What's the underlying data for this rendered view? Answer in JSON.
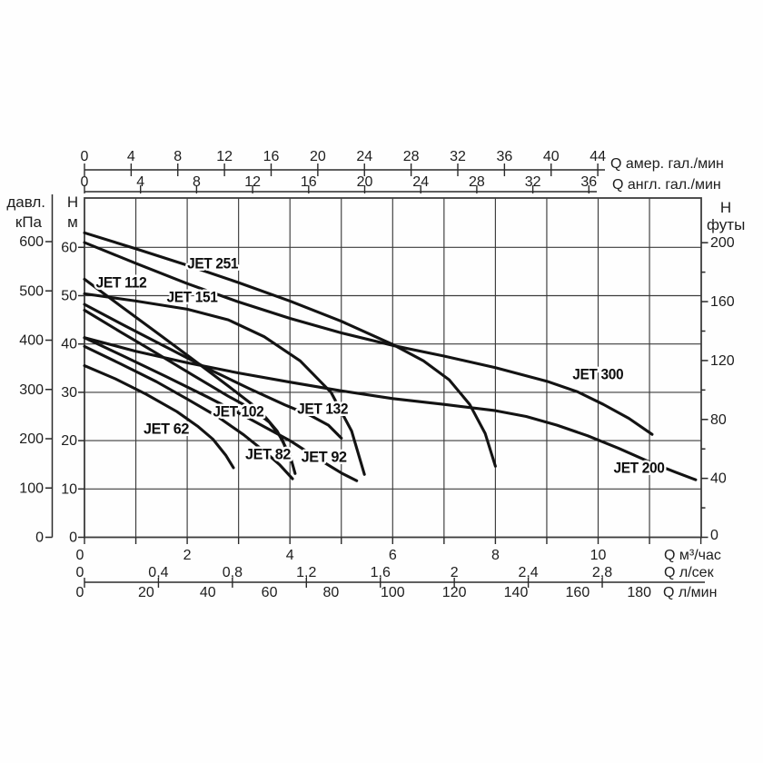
{
  "figure": {
    "background": "#ffffff",
    "description": "Напорные характеристики насосов серии JET: напор H (м, футы, кПа) в зависимости от подачи Q (м³/час, л/сек, л/мин, гал./мин)"
  },
  "colors": {
    "curve": "#131313",
    "grid": "#3c3c3c",
    "axis": "#2a2a2a",
    "text": "#1d1d1d",
    "halo": "#ffffff"
  },
  "chart_data": {
    "type": "line",
    "description": "Напорные характеристики насосов серии JET: напор H (м, футы, кПа) в зависимости от подачи Q (м³/час, л/сек, л/мин, амер./англ. гал./мин)",
    "x_unit": "м³/час",
    "y_unit": "м",
    "x_plot_range": [
      0,
      12
    ],
    "y_plot_range": [
      0,
      70.2
    ],
    "grid": {
      "x_step": 1,
      "y_step": 10
    },
    "series": [
      {
        "name": "JET 62",
        "label_at": [
          1.15,
          21.4
        ],
        "points": [
          [
            0,
            35.5
          ],
          [
            0.6,
            32.8
          ],
          [
            1.2,
            29.6
          ],
          [
            1.8,
            26.0
          ],
          [
            2.2,
            23.0
          ],
          [
            2.5,
            20.3
          ],
          [
            2.75,
            17.0
          ],
          [
            2.9,
            14.4
          ]
        ]
      },
      {
        "name": "JET 82",
        "label_at": [
          3.13,
          16.2
        ],
        "points": [
          [
            0,
            39.5
          ],
          [
            0.7,
            35.9
          ],
          [
            1.4,
            32.2
          ],
          [
            2.0,
            28.6
          ],
          [
            2.6,
            24.9
          ],
          [
            3.1,
            21.2
          ],
          [
            3.5,
            17.8
          ],
          [
            3.8,
            15.0
          ],
          [
            4.05,
            12.1
          ]
        ]
      },
      {
        "name": "JET 92",
        "label_at": [
          4.22,
          15.6
        ],
        "points": [
          [
            0,
            41.3
          ],
          [
            0.8,
            37.3
          ],
          [
            1.6,
            33.2
          ],
          [
            2.4,
            29.0
          ],
          [
            3.2,
            24.6
          ],
          [
            4.0,
            20.0
          ],
          [
            4.6,
            15.9
          ],
          [
            5.0,
            13.3
          ],
          [
            5.3,
            11.7
          ]
        ]
      },
      {
        "name": "JET 102",
        "label_at": [
          2.5,
          25.0
        ],
        "points": [
          [
            0,
            47.0
          ],
          [
            0.7,
            42.5
          ],
          [
            1.4,
            38.1
          ],
          [
            2.1,
            33.6
          ],
          [
            2.8,
            29.2
          ],
          [
            3.3,
            26.3
          ],
          [
            3.6,
            23.8
          ],
          [
            3.85,
            20.3
          ],
          [
            3.95,
            17.4
          ]
        ]
      },
      {
        "name": "JET 112",
        "label_at": [
          0.22,
          51.7
        ],
        "points": [
          [
            0,
            53.4
          ],
          [
            0.7,
            47.9
          ],
          [
            1.4,
            42.4
          ],
          [
            2.1,
            36.9
          ],
          [
            2.8,
            31.3
          ],
          [
            3.4,
            26.4
          ],
          [
            3.75,
            22.0
          ],
          [
            4.0,
            17.0
          ],
          [
            4.1,
            13.2
          ]
        ]
      },
      {
        "name": "JET 132",
        "label_at": [
          4.14,
          25.6
        ],
        "points": [
          [
            0,
            48.2
          ],
          [
            0.8,
            43.7
          ],
          [
            1.6,
            39.3
          ],
          [
            2.4,
            34.9
          ],
          [
            3.2,
            30.8
          ],
          [
            3.9,
            27.4
          ],
          [
            4.4,
            25.2
          ],
          [
            4.75,
            23.2
          ],
          [
            5.0,
            20.5
          ]
        ]
      },
      {
        "name": "JET 151",
        "label_at": [
          1.6,
          48.7
        ],
        "points": [
          [
            0,
            50.4
          ],
          [
            1.0,
            48.9
          ],
          [
            2.0,
            47.2
          ],
          [
            2.8,
            45.0
          ],
          [
            3.5,
            41.5
          ],
          [
            4.2,
            36.5
          ],
          [
            4.8,
            30.0
          ],
          [
            5.2,
            22.0
          ],
          [
            5.45,
            13.0
          ]
        ]
      },
      {
        "name": "JET 251",
        "label_at": [
          2.0,
          55.6
        ],
        "points": [
          [
            0,
            63.0
          ],
          [
            1.0,
            59.7
          ],
          [
            2.0,
            56.3
          ],
          [
            3.0,
            52.7
          ],
          [
            4.0,
            48.9
          ],
          [
            5.0,
            44.7
          ],
          [
            6.0,
            39.9
          ],
          [
            6.6,
            36.5
          ],
          [
            7.1,
            32.6
          ],
          [
            7.5,
            27.5
          ],
          [
            7.8,
            21.5
          ],
          [
            8.0,
            14.7
          ]
        ]
      },
      {
        "name": "JET 300",
        "label_at": [
          9.5,
          32.7
        ],
        "points": [
          [
            0,
            61.0
          ],
          [
            1.0,
            56.7
          ],
          [
            2.0,
            52.5
          ],
          [
            3.0,
            48.7
          ],
          [
            4.0,
            45.3
          ],
          [
            5.0,
            42.3
          ],
          [
            6.0,
            39.7
          ],
          [
            7.0,
            37.5
          ],
          [
            8.0,
            35.1
          ],
          [
            9.0,
            32.3
          ],
          [
            9.6,
            30.1
          ],
          [
            10.1,
            27.5
          ],
          [
            10.6,
            24.6
          ],
          [
            11.05,
            21.3
          ]
        ]
      },
      {
        "name": "JET 200",
        "label_at": [
          10.3,
          13.3
        ],
        "points": [
          [
            0,
            41.3
          ],
          [
            1.0,
            38.5
          ],
          [
            2.0,
            36.1
          ],
          [
            3.0,
            34.0
          ],
          [
            4.0,
            32.1
          ],
          [
            5.0,
            30.3
          ],
          [
            6.0,
            28.7
          ],
          [
            7.0,
            27.5
          ],
          [
            8.0,
            26.2
          ],
          [
            8.6,
            25.0
          ],
          [
            9.2,
            23.2
          ],
          [
            9.8,
            21.0
          ],
          [
            10.4,
            18.4
          ],
          [
            11.0,
            15.6
          ],
          [
            11.5,
            13.5
          ],
          [
            11.9,
            11.9
          ]
        ]
      }
    ]
  },
  "axes": {
    "top": [
      {
        "name": "us_gpm",
        "unit_label": "Q  амер. гал./мин",
        "ticks": [
          0,
          4,
          8,
          12,
          16,
          20,
          24,
          28,
          32,
          36,
          40,
          44
        ],
        "m3h_per_unit": 0.22712
      },
      {
        "name": "imp_gpm",
        "unit_label": "Q  англ. гал./мин",
        "ticks": [
          0,
          4,
          8,
          12,
          16,
          20,
          24,
          28,
          32,
          36
        ],
        "m3h_per_unit": 0.27277
      }
    ],
    "left": [
      {
        "name": "pressure_kpa",
        "title_lines": [
          "давл.",
          "кПа"
        ],
        "ticks": [
          600,
          500,
          400,
          300,
          200,
          100,
          0
        ],
        "m_per_unit": 0.10197
      },
      {
        "name": "head_m",
        "title_lines": [
          "H",
          "м"
        ],
        "ticks": [
          60,
          50,
          40,
          30,
          20,
          10,
          0
        ]
      }
    ],
    "right": [
      {
        "name": "head_ft",
        "title_lines": [
          "H",
          "футы"
        ],
        "labeled_ticks": [
          200,
          160,
          120,
          80,
          40,
          0
        ],
        "minor_step": 20,
        "m_per_unit": 0.3048
      }
    ],
    "bottom": [
      {
        "name": "m3h",
        "unit_label": "Q  м³/час",
        "labeled_ticks": [
          0,
          2,
          4,
          6,
          8,
          10
        ],
        "tick_step": 1
      },
      {
        "name": "l_s",
        "unit_label": "Q  л/сек",
        "tick_values": [
          0,
          0.4,
          0.8,
          1.2,
          1.6,
          2,
          2.4,
          2.8
        ],
        "tick_labels": [
          "0",
          "0,4",
          "0,8",
          "1,2",
          "1,6",
          "2",
          "2,4",
          "2,8"
        ],
        "m3h_per_unit": 3.6
      },
      {
        "name": "l_min",
        "unit_label": "Q  л/мин",
        "labeled_ticks": [
          0,
          20,
          40,
          60,
          80,
          100,
          120,
          140,
          160,
          180
        ],
        "m3h_per_unit": 0.06
      }
    ]
  }
}
